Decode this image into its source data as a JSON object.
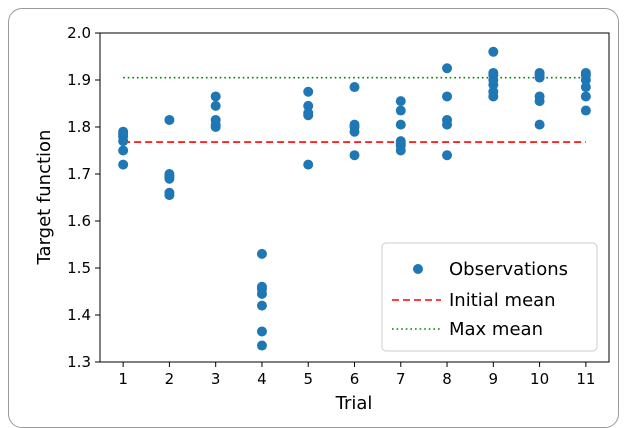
{
  "chart_data": {
    "type": "scatter",
    "xlabel": "Trial",
    "ylabel": "Target function",
    "xlim": [
      0.5,
      11.5
    ],
    "ylim": [
      1.3,
      2.0
    ],
    "x_ticks": [
      "1",
      "2",
      "3",
      "4",
      "5",
      "6",
      "7",
      "8",
      "9",
      "10",
      "11"
    ],
    "y_ticks": [
      "1.3",
      "1.4",
      "1.5",
      "1.6",
      "1.7",
      "1.8",
      "1.9",
      "2.0"
    ],
    "grid": false,
    "legend_position": "lower-right",
    "series": [
      {
        "name": "Observations",
        "kind": "points",
        "color": "#1f77b4",
        "points": [
          [
            1,
            1.72
          ],
          [
            1,
            1.75
          ],
          [
            1,
            1.77
          ],
          [
            1,
            1.78
          ],
          [
            1,
            1.785
          ],
          [
            1,
            1.79
          ],
          [
            2,
            1.655
          ],
          [
            2,
            1.66
          ],
          [
            2,
            1.69
          ],
          [
            2,
            1.695
          ],
          [
            2,
            1.7
          ],
          [
            2,
            1.815
          ],
          [
            3,
            1.8
          ],
          [
            3,
            1.805
          ],
          [
            3,
            1.815
          ],
          [
            3,
            1.845
          ],
          [
            3,
            1.865
          ],
          [
            4,
            1.335
          ],
          [
            4,
            1.365
          ],
          [
            4,
            1.42
          ],
          [
            4,
            1.445
          ],
          [
            4,
            1.455
          ],
          [
            4,
            1.46
          ],
          [
            4,
            1.53
          ],
          [
            5,
            1.72
          ],
          [
            5,
            1.825
          ],
          [
            5,
            1.83
          ],
          [
            5,
            1.845
          ],
          [
            5,
            1.875
          ],
          [
            6,
            1.74
          ],
          [
            6,
            1.79
          ],
          [
            6,
            1.8
          ],
          [
            6,
            1.805
          ],
          [
            6,
            1.885
          ],
          [
            7,
            1.75
          ],
          [
            7,
            1.76
          ],
          [
            7,
            1.765
          ],
          [
            7,
            1.77
          ],
          [
            7,
            1.805
          ],
          [
            7,
            1.835
          ],
          [
            7,
            1.855
          ],
          [
            8,
            1.74
          ],
          [
            8,
            1.805
          ],
          [
            8,
            1.815
          ],
          [
            8,
            1.865
          ],
          [
            8,
            1.925
          ],
          [
            9,
            1.865
          ],
          [
            9,
            1.875
          ],
          [
            9,
            1.89
          ],
          [
            9,
            1.9
          ],
          [
            9,
            1.91
          ],
          [
            9,
            1.915
          ],
          [
            9,
            1.96
          ],
          [
            10,
            1.805
          ],
          [
            10,
            1.855
          ],
          [
            10,
            1.865
          ],
          [
            10,
            1.905
          ],
          [
            10,
            1.91
          ],
          [
            10,
            1.915
          ],
          [
            11,
            1.835
          ],
          [
            11,
            1.865
          ],
          [
            11,
            1.885
          ],
          [
            11,
            1.9
          ],
          [
            11,
            1.91
          ],
          [
            11,
            1.915
          ]
        ]
      },
      {
        "name": "Initial mean",
        "kind": "hline",
        "y": 1.768,
        "x_range": [
          1,
          11
        ],
        "color": "#ff0000",
        "style": "dashed"
      },
      {
        "name": "Max mean",
        "kind": "hline",
        "y": 1.905,
        "x_range": [
          1,
          11
        ],
        "color": "#008000",
        "style": "dotted"
      }
    ]
  }
}
